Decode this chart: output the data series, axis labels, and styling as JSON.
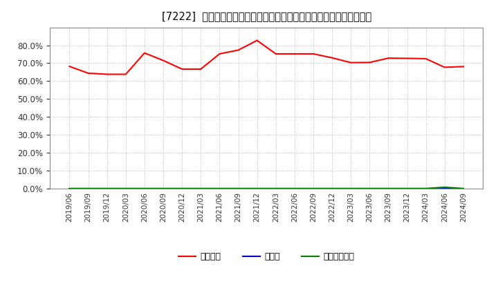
{
  "title": "[7222]  自己資本、のれん、繰延税金資産の総資産に対する比率の推移",
  "x_labels": [
    "2019/06",
    "2019/09",
    "2019/12",
    "2020/03",
    "2020/06",
    "2020/09",
    "2020/12",
    "2021/03",
    "2021/06",
    "2021/09",
    "2021/12",
    "2022/03",
    "2022/06",
    "2022/09",
    "2022/12",
    "2023/03",
    "2023/06",
    "2023/09",
    "2023/12",
    "2024/03",
    "2024/06",
    "2024/09"
  ],
  "equity_ratio": [
    0.682,
    0.644,
    0.638,
    0.638,
    0.757,
    0.715,
    0.667,
    0.667,
    0.752,
    0.773,
    0.827,
    0.752,
    0.752,
    0.752,
    0.73,
    0.703,
    0.704,
    0.728,
    0.727,
    0.725,
    0.677,
    0.681
  ],
  "goodwill_ratio": [
    0.0,
    0.0,
    0.0,
    0.0,
    0.0,
    0.0,
    0.0,
    0.0,
    0.0,
    0.0,
    0.0,
    0.0,
    0.0,
    0.0,
    0.0,
    0.0,
    0.0,
    0.0,
    0.0,
    0.0,
    0.0,
    0.0
  ],
  "deferred_tax_ratio": [
    0.0,
    0.0,
    0.0,
    0.0,
    0.0,
    0.0,
    0.0,
    0.0,
    0.0,
    0.0,
    0.0,
    0.0,
    0.0,
    0.0,
    0.0,
    0.0,
    0.0,
    0.0,
    0.0,
    0.0,
    0.007,
    0.0
  ],
  "equity_color": "#ff0000",
  "goodwill_color": "#0000cc",
  "deferred_tax_color": "#008000",
  "background_color": "#ffffff",
  "plot_bg_color": "#ffffff",
  "grid_color": "#aaaaaa",
  "ylim_max": 0.9,
  "yticks": [
    0.0,
    0.1,
    0.2,
    0.3,
    0.4,
    0.5,
    0.6,
    0.7,
    0.8
  ],
  "legend_labels": [
    "自己資本",
    "のれん",
    "繰延税金資産"
  ]
}
